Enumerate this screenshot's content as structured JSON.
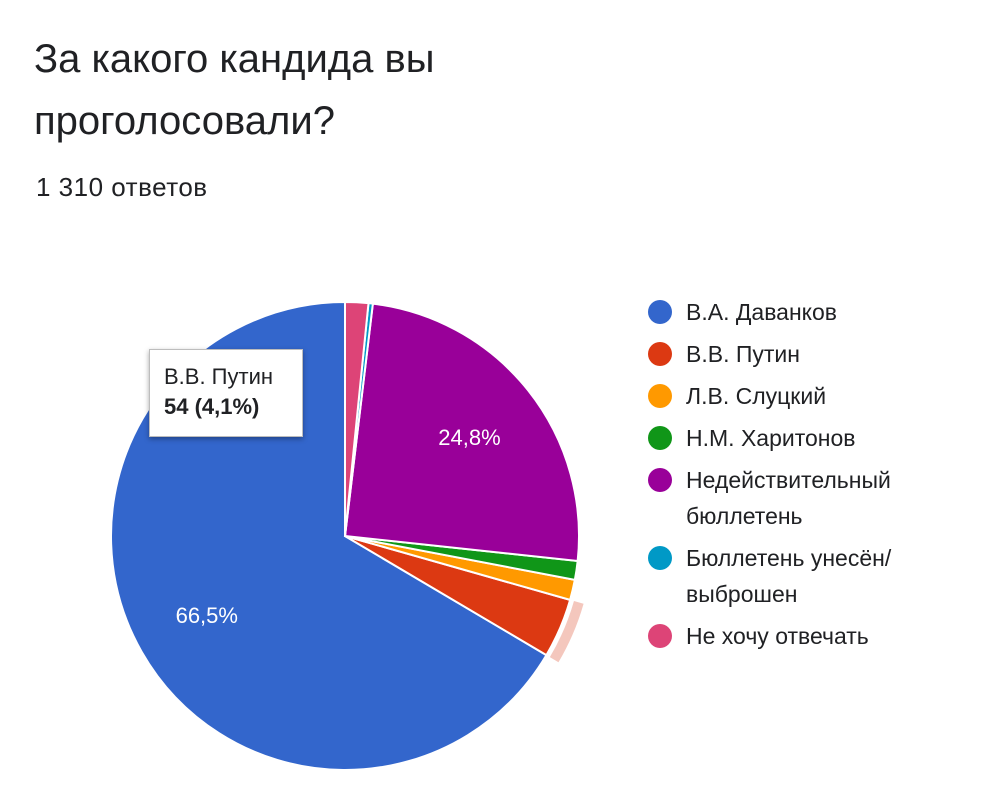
{
  "title": "За какого кандида вы проголосовали?",
  "response_count": "1 310 ответов",
  "tooltip": {
    "label": "В.В. Путин",
    "value": "54 (4,1%)"
  },
  "chart_data": {
    "type": "pie",
    "total": 1310,
    "series": [
      {
        "name": "В.А. Даванков",
        "value": 66.5,
        "color": "#3366cc",
        "label": "66,5%"
      },
      {
        "name": "В.В. Путин",
        "value": 4.1,
        "count": 54,
        "color": "#dc3912",
        "label": ""
      },
      {
        "name": "Л.В. Слуцкий",
        "value": 1.4,
        "color": "#ff9900",
        "label": ""
      },
      {
        "name": "Н.М. Харитонов",
        "value": 1.3,
        "color": "#109618",
        "label": ""
      },
      {
        "name": "Недействительный бюллетень",
        "value": 24.8,
        "color": "#990099",
        "label": "24,8%"
      },
      {
        "name": "Бюллетень унесён/ выброшен",
        "value": 0.3,
        "color": "#0099c6",
        "label": ""
      },
      {
        "name": "Не хочу отвечать",
        "value": 1.6,
        "color": "#dd4477",
        "label": ""
      }
    ],
    "highlighted": "В.В. Путин",
    "highlight_color": "#f4c7bd",
    "legend_position": "right"
  }
}
